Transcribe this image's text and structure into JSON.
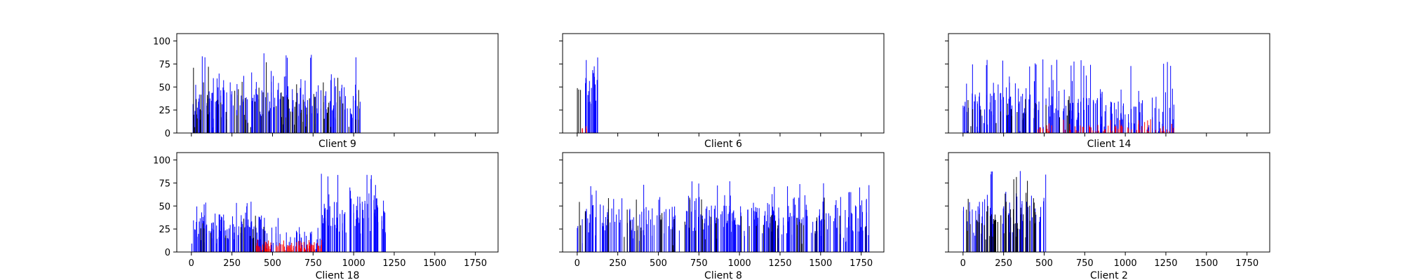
{
  "chart_data": [
    {
      "type": "bar",
      "title": "Client 9",
      "xlabel": "",
      "ylabel": "",
      "xlim": [
        -90,
        1890
      ],
      "ylim": [
        0,
        108
      ],
      "xticks": [
        0,
        250,
        500,
        750,
        1000,
        1250,
        1500,
        1750
      ],
      "yticks": [
        0,
        25,
        50,
        75,
        100
      ],
      "show_xtick_labels": false,
      "show_ytick_labels": true,
      "grid": false,
      "series": [
        {
          "color": "#0000ff",
          "count": 170,
          "x_range": [
            0,
            1040
          ],
          "mean": 38,
          "spread": 20,
          "max": 88
        },
        {
          "color": "#000000",
          "count": 70,
          "x_range": [
            0,
            1040
          ],
          "mean": 30,
          "spread": 20,
          "max": 78
        }
      ]
    },
    {
      "type": "bar",
      "title": "Client 6",
      "xlabel": "",
      "ylabel": "",
      "xlim": [
        -90,
        1890
      ],
      "ylim": [
        0,
        108
      ],
      "xticks": [
        0,
        250,
        500,
        750,
        1000,
        1250,
        1500,
        1750
      ],
      "yticks": [
        0,
        25,
        50,
        75,
        100
      ],
      "show_xtick_labels": false,
      "show_ytick_labels": false,
      "grid": false,
      "series": [
        {
          "color": "#0000ff",
          "count": 22,
          "x_range": [
            50,
            130
          ],
          "mean": 50,
          "spread": 18,
          "max": 84
        },
        {
          "color": "#000000",
          "count": 3,
          "x_range": [
            0,
            25
          ],
          "mean": 45,
          "spread": 12,
          "max": 57
        },
        {
          "color": "#ff0000",
          "count": 5,
          "x_range": [
            30,
            70
          ],
          "mean": 4,
          "spread": 3,
          "max": 8
        }
      ]
    },
    {
      "type": "bar",
      "title": "Client 14",
      "xlabel": "",
      "ylabel": "",
      "xlim": [
        -90,
        1890
      ],
      "ylim": [
        0,
        108
      ],
      "xticks": [
        0,
        250,
        500,
        750,
        1000,
        1250,
        1500,
        1750
      ],
      "yticks": [
        0,
        25,
        50,
        75,
        100
      ],
      "show_xtick_labels": false,
      "show_ytick_labels": false,
      "grid": false,
      "series": [
        {
          "color": "#0000ff",
          "count": 210,
          "x_range": [
            0,
            1300
          ],
          "mean": 28,
          "spread": 20,
          "max": 80
        },
        {
          "color": "#000000",
          "count": 18,
          "x_range": [
            0,
            700
          ],
          "mean": 25,
          "spread": 15,
          "max": 60
        },
        {
          "color": "#ff0000",
          "count": 70,
          "x_range": [
            460,
            1300
          ],
          "mean": 5,
          "spread": 4,
          "max": 15
        }
      ]
    },
    {
      "type": "bar",
      "title": "Client 18",
      "xlabel": "",
      "ylabel": "",
      "xlim": [
        -90,
        1890
      ],
      "ylim": [
        0,
        108
      ],
      "xticks": [
        0,
        250,
        500,
        750,
        1000,
        1250,
        1500,
        1750
      ],
      "yticks": [
        0,
        25,
        50,
        75,
        100
      ],
      "show_xtick_labels": true,
      "show_ytick_labels": true,
      "grid": false,
      "series": [
        {
          "color": "#0000ff",
          "count": 120,
          "x_range": [
            0,
            450
          ],
          "mean": 26,
          "spread": 14,
          "max": 55
        },
        {
          "color": "#0000ff",
          "count": 35,
          "x_range": [
            450,
            800
          ],
          "mean": 18,
          "spread": 12,
          "max": 46
        },
        {
          "color": "#0000ff",
          "count": 90,
          "x_range": [
            800,
            1200
          ],
          "mean": 42,
          "spread": 20,
          "max": 86
        },
        {
          "color": "#000000",
          "count": 12,
          "x_range": [
            0,
            450
          ],
          "mean": 22,
          "spread": 10,
          "max": 40
        },
        {
          "color": "#ff0000",
          "count": 90,
          "x_range": [
            400,
            810
          ],
          "mean": 6,
          "spread": 4,
          "max": 14
        }
      ]
    },
    {
      "type": "bar",
      "title": "Client 8",
      "xlabel": "",
      "ylabel": "",
      "xlim": [
        -90,
        1890
      ],
      "ylim": [
        0,
        108
      ],
      "xticks": [
        0,
        250,
        500,
        750,
        1000,
        1250,
        1500,
        1750
      ],
      "yticks": [
        0,
        25,
        50,
        75,
        100
      ],
      "show_xtick_labels": true,
      "show_ytick_labels": false,
      "grid": false,
      "series": [
        {
          "color": "#0000ff",
          "count": 300,
          "x_range": [
            0,
            1800
          ],
          "mean": 38,
          "spread": 18,
          "max": 77
        },
        {
          "color": "#000000",
          "count": 50,
          "x_range": [
            0,
            1800
          ],
          "mean": 30,
          "spread": 15,
          "max": 60
        }
      ]
    },
    {
      "type": "bar",
      "title": "Client 2",
      "xlabel": "",
      "ylabel": "",
      "xlim": [
        -90,
        1890
      ],
      "ylim": [
        0,
        108
      ],
      "xticks": [
        0,
        250,
        500,
        750,
        1000,
        1250,
        1500,
        1750
      ],
      "yticks": [
        0,
        25,
        50,
        75,
        100
      ],
      "show_xtick_labels": true,
      "show_ytick_labels": false,
      "grid": false,
      "series": [
        {
          "color": "#0000ff",
          "count": 70,
          "x_range": [
            0,
            510
          ],
          "mean": 40,
          "spread": 18,
          "max": 90
        },
        {
          "color": "#000000",
          "count": 55,
          "x_range": [
            0,
            450
          ],
          "mean": 38,
          "spread": 18,
          "max": 82
        }
      ]
    }
  ]
}
